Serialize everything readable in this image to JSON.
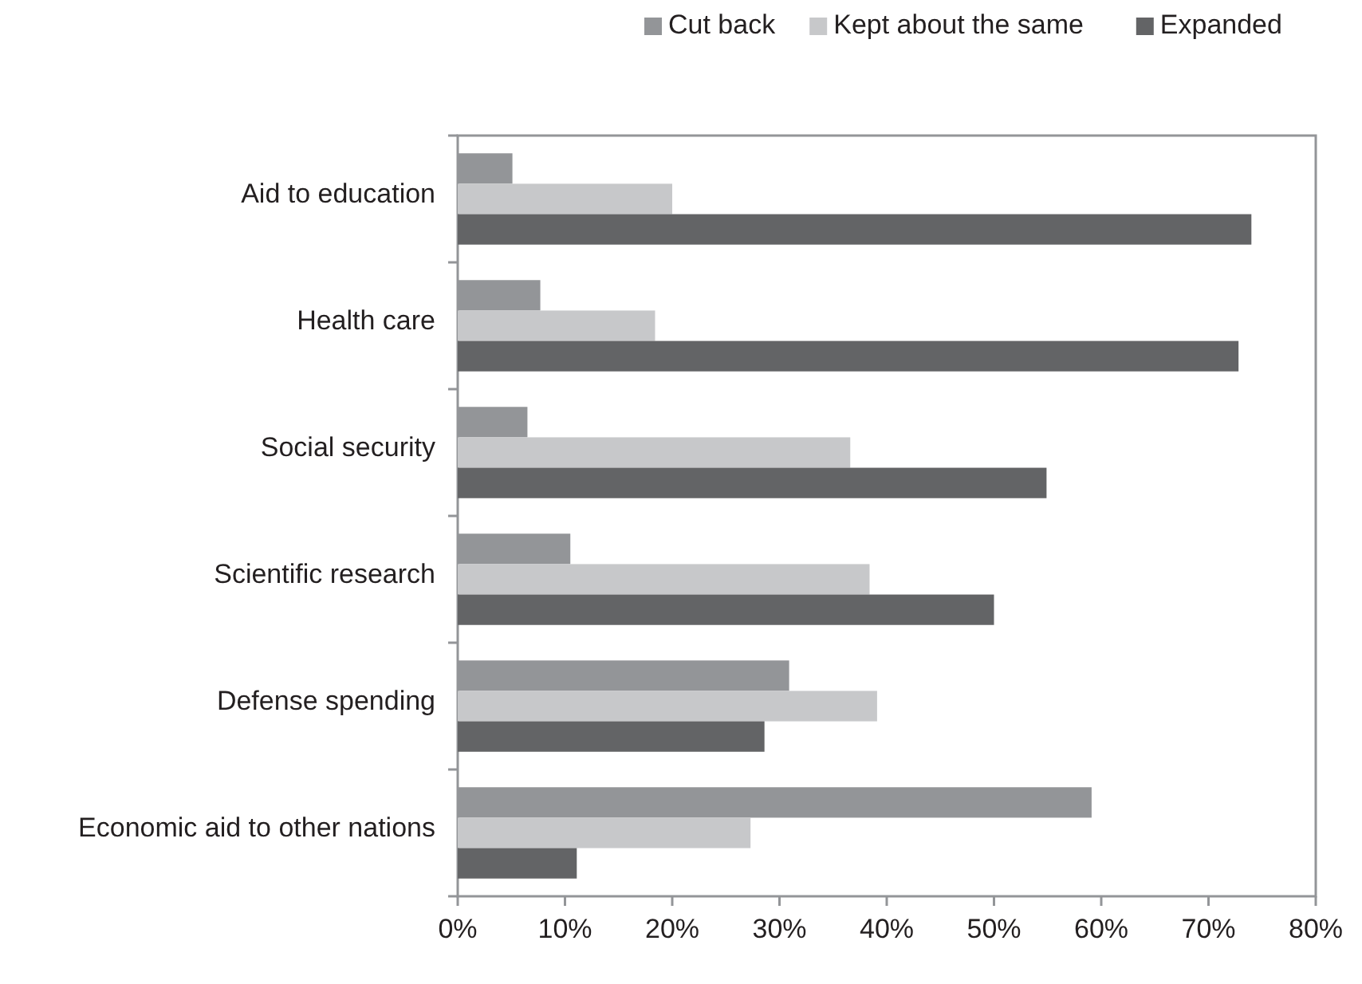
{
  "chart_data": {
    "type": "bar",
    "orientation": "horizontal",
    "categories": [
      "Aid to education",
      "Health care",
      "Social security",
      "Scientific research",
      "Defense spending",
      "Economic aid to other nations"
    ],
    "series": [
      {
        "name": "Cut back",
        "color": "#939598",
        "values": [
          5.1,
          7.7,
          6.5,
          10.5,
          30.9,
          59.1
        ]
      },
      {
        "name": "Kept about the same",
        "color": "#c7c8ca",
        "values": [
          20,
          18.4,
          36.6,
          38.4,
          39.1,
          27.3
        ]
      },
      {
        "name": "Expanded",
        "color": "#636466",
        "values": [
          74,
          72.8,
          54.9,
          50,
          28.6,
          11.1
        ]
      }
    ],
    "xlim": [
      0,
      80
    ],
    "xticks": [
      {
        "value": 0,
        "label": "0%"
      },
      {
        "value": 10,
        "label": "10%"
      },
      {
        "value": 20,
        "label": "20%"
      },
      {
        "value": 30,
        "label": "30%"
      },
      {
        "value": 40,
        "label": "40%"
      },
      {
        "value": 50,
        "label": "50%"
      },
      {
        "value": 60,
        "label": "60%"
      },
      {
        "value": 70,
        "label": "70%"
      },
      {
        "value": 80,
        "label": "80%"
      }
    ],
    "grid": false,
    "legend": "top"
  }
}
